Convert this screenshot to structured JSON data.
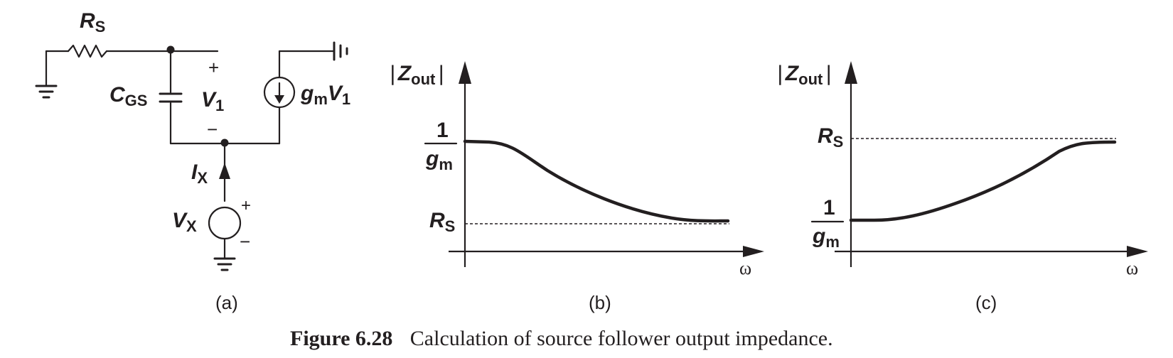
{
  "panel_a": {
    "rs": {
      "main": "R",
      "sub": "S"
    },
    "cgs": {
      "main": "C",
      "sub": "GS"
    },
    "v1": {
      "main": "V",
      "sub": "1"
    },
    "v1_plus": "+",
    "v1_minus": "−",
    "gmv1": {
      "g": "g",
      "m": "m",
      "v": "V",
      "one": "1"
    },
    "ix": {
      "main": "I",
      "sub": "X"
    },
    "vx": {
      "main": "V",
      "sub": "X"
    },
    "vx_plus": "+",
    "vx_minus": "−",
    "caption": "(a)"
  },
  "panel_b": {
    "ylabel": {
      "main": "Z",
      "sub": "out"
    },
    "xlabel": "ω",
    "frac_num": "1",
    "frac_den": {
      "g": "g",
      "m": "m"
    },
    "rs": {
      "main": "R",
      "sub": "S"
    },
    "caption": "(b)"
  },
  "panel_c": {
    "ylabel": {
      "main": "Z",
      "sub": "out"
    },
    "xlabel": "ω",
    "frac_num": "1",
    "frac_den": {
      "g": "g",
      "m": "m"
    },
    "rs": {
      "main": "R",
      "sub": "S"
    },
    "caption": "(c)"
  },
  "figure_caption": {
    "label": "Figure 6.28",
    "text": "Calculation of source follower output impedance."
  }
}
